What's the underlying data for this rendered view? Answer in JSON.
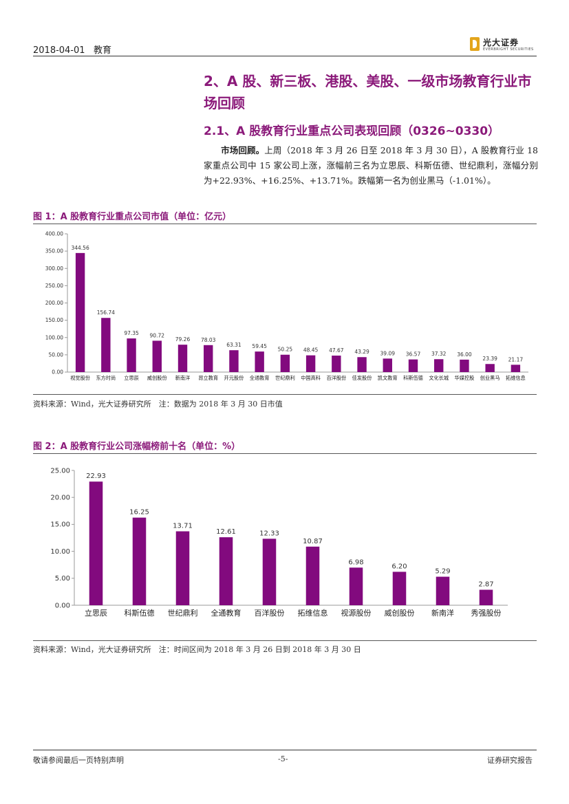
{
  "header": {
    "date": "2018-04-01",
    "category": "教育",
    "brand_name": "光大证券",
    "brand_sub": "EVERBRIGHT SECURITIES"
  },
  "section": {
    "title": "2、A 股、新三板、港股、美股、一级市场教育行业市场回顾",
    "subtitle": "2.1、A 股教育行业重点公司表现回顾（0326~0330）",
    "para_lead": "市场回顾。",
    "para_body": "上周（2018 年 3 月 26 日至 2018 年 3 月 30 日），A 股教育行业 18 家重点公司中 15 家公司上涨，涨幅前三名为立思辰、科斯伍德、世纪鼎利，涨幅分别为+22.93%、+16.25%、+13.71%。跌幅第一名为创业黑马（-1.01%）。"
  },
  "fig1": {
    "title": "图 1：A 股教育行业重点公司市值（单位：亿元）",
    "source": "资料来源：Wind，光大证券研究所　注：数据为 2018 年 3 月 30 日市值"
  },
  "fig2": {
    "title": "图 2：A 股教育行业公司涨幅榜前十名（单位：%）",
    "source": "资料来源：Wind，光大证券研究所　注：时间区间为 2018 年 3 月 26 日到 2018 年 3 月 30 日"
  },
  "footer": {
    "left": "敬请参阅最后一页特别声明",
    "center": "-5-",
    "right": "证券研究报告"
  },
  "chart_data": [
    {
      "type": "bar",
      "title": "",
      "categories": [
        "视觉股份",
        "东方时尚",
        "立思辰",
        "威创股份",
        "新南洋",
        "昂立教育",
        "开元股份",
        "全通教育",
        "世纪鼎利",
        "中国高科",
        "百洋股份",
        "佳发股份",
        "凯文教育",
        "科斯伍德",
        "文化长城",
        "华媒控股",
        "创业黑马",
        "拓维信息"
      ],
      "values": [
        344.56,
        156.74,
        97.35,
        90.72,
        79.26,
        78.03,
        63.31,
        59.45,
        50.25,
        48.45,
        47.67,
        43.29,
        39.09,
        36.57,
        37.32,
        36.0,
        23.39,
        21.17
      ],
      "value_labels": [
        "344.56",
        "156.74",
        "97.35",
        "90.72",
        "79.26",
        "78.03",
        "63.31",
        "59.45",
        "50.25",
        "48.45",
        "47.67",
        "43.29",
        "39.09",
        "36.57",
        "37.32",
        "36.00",
        "23.39",
        "21.17"
      ],
      "yticks": [
        "0.00",
        "50.00",
        "100.00",
        "150.00",
        "200.00",
        "250.00",
        "300.00",
        "350.00",
        "400.00"
      ],
      "ylim": [
        0,
        400
      ],
      "bar_color": "#820a7e",
      "grid": false
    },
    {
      "type": "bar",
      "title": "",
      "categories": [
        "立思辰",
        "科斯伍德",
        "世纪鼎利",
        "全通教育",
        "百洋股份",
        "拓维信息",
        "视源股份",
        "威创股份",
        "新南洋",
        "秀强股份"
      ],
      "values": [
        22.93,
        16.25,
        13.71,
        12.61,
        12.33,
        10.87,
        6.98,
        6.2,
        5.29,
        2.87
      ],
      "value_labels": [
        "22.93",
        "16.25",
        "13.71",
        "12.61",
        "12.33",
        "10.87",
        "6.98",
        "6.20",
        "5.29",
        "2.87"
      ],
      "yticks": [
        "0.00",
        "5.00",
        "10.00",
        "15.00",
        "20.00",
        "25.00"
      ],
      "ylim": [
        0,
        25
      ],
      "bar_color": "#820a7e",
      "grid": false
    }
  ]
}
